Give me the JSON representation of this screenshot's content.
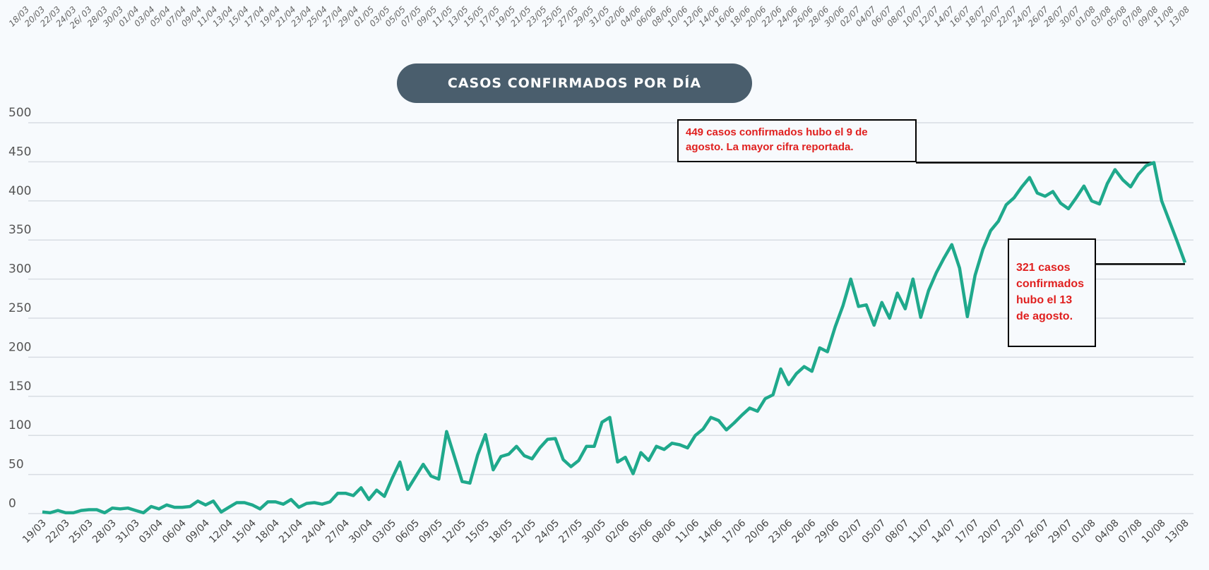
{
  "chart_data": {
    "type": "line",
    "title": "CASOS CONFIRMADOS POR DÍA",
    "xlabel": "",
    "ylabel": "",
    "ylim": [
      0,
      500
    ],
    "yticks": [
      "0",
      "50",
      "100",
      "150",
      "200",
      "250",
      "300",
      "350",
      "400",
      "450",
      "500"
    ],
    "grid": true,
    "line_color": "#1fa98c",
    "title_bg": "#4a5e6d",
    "annotation_color": "#e0201f",
    "x": [
      "19/03",
      "20/03",
      "21/03",
      "22/03",
      "23/03",
      "24/03",
      "25/03",
      "26/03",
      "27/03",
      "28/03",
      "29/03",
      "30/03",
      "31/03",
      "01/04",
      "02/04",
      "03/04",
      "04/04",
      "05/04",
      "06/04",
      "07/04",
      "08/04",
      "09/04",
      "10/04",
      "11/04",
      "12/04",
      "13/04",
      "14/04",
      "15/04",
      "16/04",
      "17/04",
      "18/04",
      "19/04",
      "20/04",
      "21/04",
      "22/04",
      "23/04",
      "24/04",
      "25/04",
      "26/04",
      "27/04",
      "28/04",
      "29/04",
      "30/04",
      "01/05",
      "02/05",
      "03/05",
      "04/05",
      "05/05",
      "06/05",
      "07/05",
      "08/05",
      "09/05",
      "10/05",
      "11/05",
      "12/05",
      "13/05",
      "14/05",
      "15/05",
      "16/05",
      "17/05",
      "18/05",
      "19/05",
      "20/05",
      "21/05",
      "22/05",
      "23/05",
      "24/05",
      "25/05",
      "26/05",
      "27/05",
      "28/05",
      "29/05",
      "30/05",
      "31/05",
      "01/06",
      "02/06",
      "03/06",
      "04/06",
      "05/06",
      "06/06",
      "07/06",
      "08/06",
      "09/06",
      "10/06",
      "11/06",
      "12/06",
      "13/06",
      "14/06",
      "15/06",
      "16/06",
      "17/06",
      "18/06",
      "19/06",
      "20/06",
      "21/06",
      "22/06",
      "23/06",
      "24/06",
      "25/06",
      "26/06",
      "27/06",
      "28/06",
      "29/06",
      "30/06",
      "01/07",
      "02/07",
      "03/07",
      "04/07",
      "05/07",
      "06/07",
      "07/07",
      "08/07",
      "09/07",
      "10/07",
      "11/07",
      "12/07",
      "13/07",
      "14/07",
      "15/07",
      "16/07",
      "17/07",
      "18/07",
      "19/07",
      "20/07",
      "21/07",
      "22/07",
      "23/07",
      "24/07",
      "25/07",
      "26/07",
      "27/07",
      "28/07",
      "29/07",
      "30/07",
      "31/07",
      "01/08",
      "02/08",
      "03/08",
      "04/08",
      "05/08",
      "06/08",
      "07/08",
      "08/08",
      "09/08",
      "10/08",
      "11/08",
      "12/08",
      "13/08"
    ],
    "values": [
      2,
      1,
      4,
      1,
      1,
      4,
      5,
      5,
      1,
      7,
      6,
      7,
      4,
      1,
      9,
      6,
      11,
      8,
      8,
      9,
      16,
      11,
      16,
      2,
      8,
      14,
      14,
      11,
      6,
      15,
      15,
      12,
      18,
      8,
      13,
      14,
      12,
      15,
      26,
      26,
      23,
      33,
      18,
      30,
      22,
      45,
      66,
      31,
      47,
      63,
      48,
      44,
      105,
      73,
      41,
      39,
      75,
      101,
      56,
      73,
      76,
      86,
      74,
      70,
      84,
      95,
      96,
      69,
      60,
      68,
      86,
      86,
      117,
      123,
      66,
      72,
      51,
      78,
      68,
      86,
      82,
      90,
      88,
      84,
      100,
      108,
      123,
      119,
      107,
      116,
      126,
      135,
      131,
      147,
      152,
      185,
      165,
      179,
      188,
      182,
      212,
      207,
      239,
      266,
      300,
      265,
      267,
      241,
      270,
      250,
      282,
      262,
      300,
      251,
      285,
      308,
      327,
      344,
      314,
      252,
      305,
      338,
      362,
      374,
      395,
      404,
      418,
      430,
      410,
      406,
      412,
      397,
      390,
      404,
      419,
      400,
      396,
      422,
      440,
      427,
      418,
      434,
      445,
      449,
      400,
      374,
      348,
      321
    ],
    "bottom_tick_labels": [
      "19/03",
      "22/03",
      "25/03",
      "28/03",
      "31/03",
      "03/04",
      "06/04",
      "09/04",
      "12/04",
      "15/04",
      "18/04",
      "21/04",
      "24/04",
      "27/04",
      "30/04",
      "03/05",
      "06/05",
      "09/05",
      "12/05",
      "15/05",
      "18/05",
      "21/05",
      "24/05",
      "27/05",
      "30/05",
      "02/06",
      "05/06",
      "08/06",
      "11/06",
      "14/06",
      "17/06",
      "20/06",
      "23/06",
      "26/06",
      "29/06",
      "02/07",
      "05/07",
      "08/07",
      "11/07",
      "14/07",
      "17/07",
      "20/07",
      "23/07",
      "26/07",
      "29/07",
      "01/08",
      "04/08",
      "07/08",
      "10/08",
      "13/08"
    ],
    "top_tick_labels": [
      "18/03",
      "20/03",
      "22/03",
      "24/03",
      "26/ 03",
      "28/03",
      "30/03",
      "01/04",
      "03/04",
      "05/04",
      "07/04",
      "09/04",
      "11/04",
      "13/04",
      "15/04",
      "17/04",
      "19/04",
      "21/04",
      "23/04",
      "25/04",
      "27/04",
      "29/04",
      "01/05",
      "03/05",
      "05/05",
      "07/05",
      "09/05",
      "11/05",
      "13/05",
      "15/05",
      "17/05",
      "19/05",
      "21/05",
      "23/05",
      "25/05",
      "27/05",
      "29/05",
      "31/05",
      "02/06",
      "04/06",
      "06/06",
      "08/06",
      "10/06",
      "12/06",
      "14/06",
      "16/06",
      "18/06",
      "20/06",
      "22/06",
      "24/06",
      "26/06",
      "28/06",
      "30/06",
      "02/07",
      "04/07",
      "06/07",
      "08/07",
      "10/07",
      "12/07",
      "14/07",
      "16/07",
      "18/07",
      "20/07",
      "22/07",
      "24/07",
      "26/07",
      "28/07",
      "30/07",
      "01/08",
      "03/08",
      "05/08",
      "07/08",
      "09/08",
      "11/08",
      "13/08"
    ],
    "annotations": [
      {
        "text": "449 casos confirmados hubo el 9 de agosto. La mayor cifra reportada.",
        "x": "09/08",
        "y": 449
      },
      {
        "text": "321 casos confirmados hubo el 13 de agosto.",
        "x": "13/08",
        "y": 321
      }
    ]
  }
}
